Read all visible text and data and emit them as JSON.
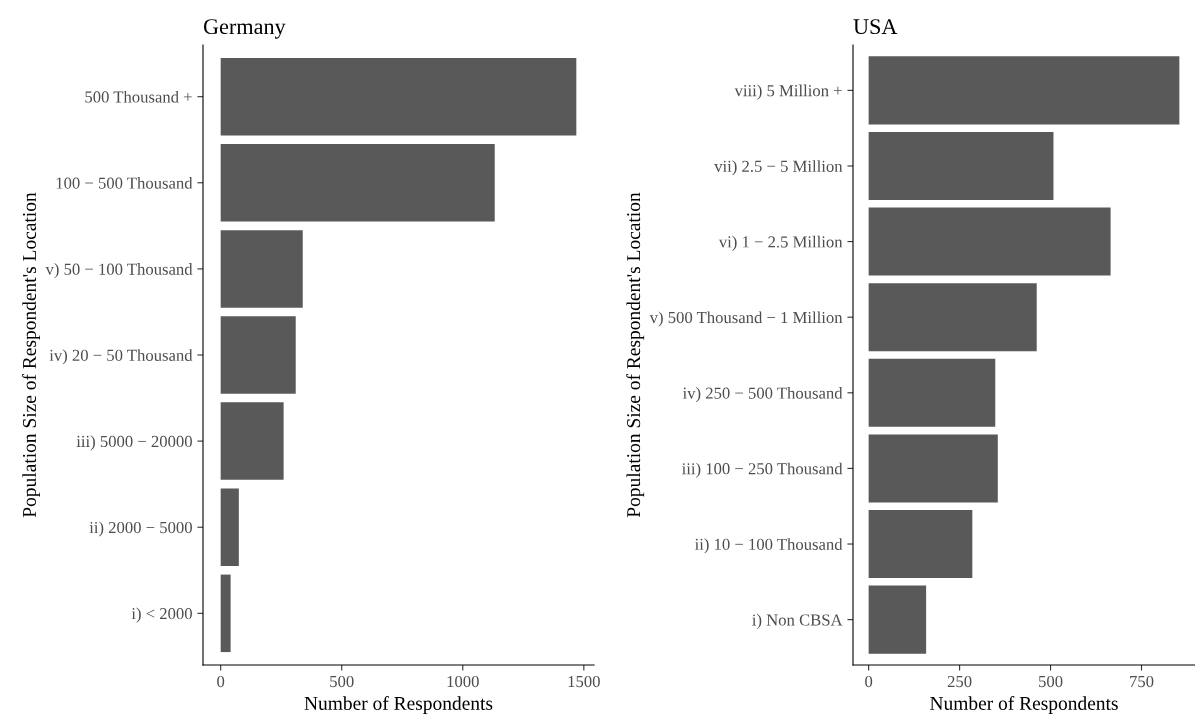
{
  "chart_data": [
    {
      "type": "bar",
      "orientation": "horizontal",
      "title": "Germany",
      "xlabel": "Number of Respondents",
      "ylabel": "Population Size of Respondent's Location",
      "categories": [
        "500 Thousand +",
        "100 − 500 Thousand",
        "v) 50 − 100 Thousand",
        "iv) 20 − 50 Thousand",
        "iii) 5000 − 20000",
        "ii) 2000 − 5000",
        "i) < 2000"
      ],
      "values": [
        1469,
        1132,
        339,
        310,
        260,
        75,
        41
      ],
      "color": "#595959",
      "xlim": [
        -73,
        1542
      ],
      "xticks": [
        0,
        500,
        1000,
        1500
      ],
      "grid": false,
      "legend": false
    },
    {
      "type": "bar",
      "orientation": "horizontal",
      "title": "USA",
      "xlabel": "Number of Respondents",
      "ylabel": "Population Size of Respondent's Location",
      "categories": [
        "viii) 5 Million +",
        "vii) 2.5 − 5 Million",
        "vi) 1 − 2.5 Million",
        "v) 500 Thousand − 1 Million",
        "iv) 250 − 500 Thousand",
        "iii) 100 − 250 Thousand",
        "ii) 10 − 100 Thousand",
        "i) Non CBSA"
      ],
      "values": [
        854,
        508,
        665,
        462,
        348,
        355,
        285,
        158
      ],
      "color": "#595959",
      "xlim": [
        -43,
        897
      ],
      "xticks": [
        0,
        250,
        500,
        750
      ],
      "grid": false,
      "legend": false
    }
  ]
}
